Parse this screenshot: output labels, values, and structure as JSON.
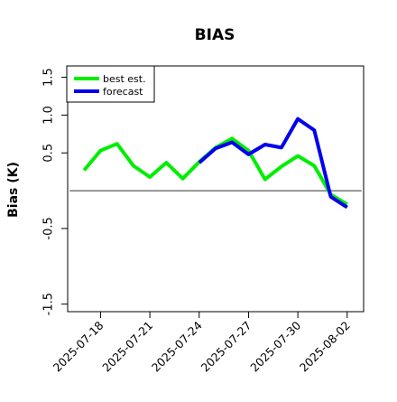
{
  "chart_data": {
    "type": "line",
    "title": "BIAS",
    "ylabel": "Bias (K)",
    "ylim": [
      -1.6,
      1.65
    ],
    "y_ticks": [
      -1.5,
      -0.5,
      0.5,
      1.0,
      1.5
    ],
    "y_tick_labels": [
      "-1.5",
      "-0.5",
      "0.5",
      "1.0",
      "1.5"
    ],
    "x_dates": [
      "2025-07-17",
      "2025-07-18",
      "2025-07-19",
      "2025-07-20",
      "2025-07-21",
      "2025-07-22",
      "2025-07-23",
      "2025-07-24",
      "2025-07-25",
      "2025-07-26",
      "2025-07-27",
      "2025-07-28",
      "2025-07-29",
      "2025-07-30",
      "2025-07-31",
      "2025-08-01",
      "2025-08-02"
    ],
    "x_ticks": [
      "2025-07-18",
      "2025-07-21",
      "2025-07-24",
      "2025-07-27",
      "2025-07-30",
      "2025-08-02"
    ],
    "x_tick_colors": [
      "#000000",
      "#000000",
      "#2e8b2e",
      "#000000",
      "#000000",
      "#000000"
    ],
    "xlim": [
      "2025-07-16",
      "2025-08-03"
    ],
    "reference_line_y": 0.0,
    "series": [
      {
        "name": "best est.",
        "color": "#00ee00",
        "dates": [
          "2025-07-17",
          "2025-07-18",
          "2025-07-19",
          "2025-07-20",
          "2025-07-21",
          "2025-07-22",
          "2025-07-23",
          "2025-07-24",
          "2025-07-25",
          "2025-07-26",
          "2025-07-27",
          "2025-07-28",
          "2025-07-29",
          "2025-07-30",
          "2025-07-31",
          "2025-08-01",
          "2025-08-02"
        ],
        "values": [
          0.27,
          0.53,
          0.62,
          0.33,
          0.18,
          0.37,
          0.16,
          0.38,
          0.57,
          0.69,
          0.53,
          0.15,
          0.32,
          0.46,
          0.33,
          -0.05,
          -0.18
        ]
      },
      {
        "name": "forecast",
        "color": "#0000ee",
        "dates": [
          "2025-07-24",
          "2025-07-25",
          "2025-07-26",
          "2025-07-27",
          "2025-07-28",
          "2025-07-29",
          "2025-07-30",
          "2025-07-31",
          "2025-08-01",
          "2025-08-02"
        ],
        "values": [
          0.37,
          0.56,
          0.64,
          0.48,
          0.61,
          0.57,
          0.95,
          0.8,
          -0.08,
          -0.22
        ]
      }
    ],
    "legend_placement": "top-left",
    "grid": false
  }
}
